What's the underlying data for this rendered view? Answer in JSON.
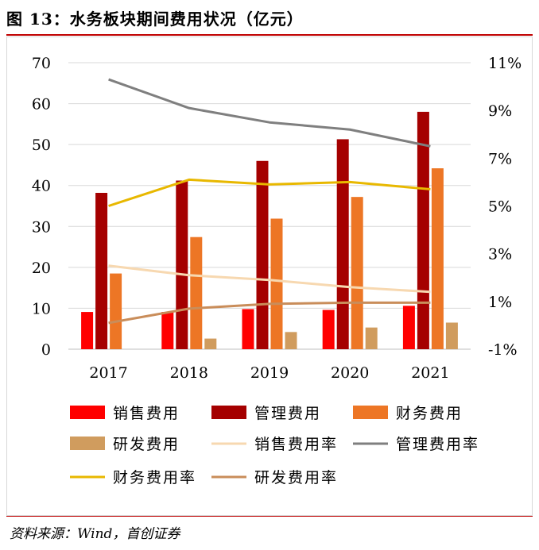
{
  "title": "图 13：水务板块期间费用状况（亿元）",
  "source": "资料来源：Wind，首创证券",
  "chart_data": {
    "type": "bar+line",
    "categories": [
      "2017",
      "2018",
      "2019",
      "2020",
      "2021"
    ],
    "y_left": {
      "lim": [
        0,
        70
      ],
      "ticks": [
        "0",
        "10",
        "20",
        "30",
        "40",
        "50",
        "60",
        "70"
      ]
    },
    "y_right": {
      "lim": [
        -1,
        11
      ],
      "ticks": [
        "-1%",
        "1%",
        "3%",
        "5%",
        "7%",
        "9%",
        "11%"
      ]
    },
    "bar_series": [
      {
        "name": "销售费用",
        "color": "#ff0000",
        "values": [
          9.1,
          9.1,
          9.8,
          9.6,
          10.6
        ]
      },
      {
        "name": "管理费用",
        "color": "#a50000",
        "values": [
          38.2,
          41.2,
          46.0,
          51.3,
          58.0
        ]
      },
      {
        "name": "财务费用",
        "color": "#ed7625",
        "values": [
          18.5,
          27.4,
          31.9,
          37.2,
          44.2
        ]
      },
      {
        "name": "研发费用",
        "color": "#d09c5e",
        "values": [
          null,
          2.6,
          4.2,
          5.3,
          6.5
        ]
      }
    ],
    "line_series": [
      {
        "name": "销售费用率",
        "color": "#f7d8b0",
        "values": [
          2.5,
          2.1,
          1.9,
          1.6,
          1.4
        ]
      },
      {
        "name": "管理费用率",
        "color": "#7f7f7f",
        "values": [
          10.3,
          9.1,
          8.5,
          8.2,
          7.5
        ]
      },
      {
        "name": "财务费用率",
        "color": "#e8b800",
        "values": [
          5.0,
          6.1,
          5.9,
          6.0,
          5.7
        ]
      },
      {
        "name": "研发费用率",
        "color": "#c98d5a",
        "values": [
          0.1,
          0.7,
          0.9,
          0.95,
          0.95
        ]
      }
    ],
    "grid": true,
    "legend_position": "bottom"
  }
}
